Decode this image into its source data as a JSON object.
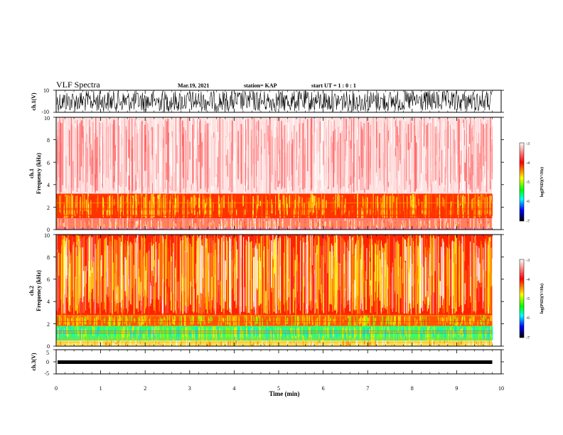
{
  "header": {
    "title": "VLF Spectra",
    "date": "Mar.19, 2021",
    "station": "station= KAP",
    "start": "start  UT =   1 : 0  : 1"
  },
  "chart_data": [
    {
      "type": "line",
      "title": "",
      "ylabel": "ch.1(V)",
      "ylim": [
        -10,
        10
      ],
      "yticks": [
        "10",
        "-10"
      ],
      "xlim": [
        0,
        10
      ],
      "description_note": "dense waveform trace"
    },
    {
      "type": "heatmap",
      "title": "",
      "ylabel_top": "ch.1",
      "ylabel": "Frequency  (kHz)",
      "ylim": [
        0,
        10
      ],
      "yticks": [
        "0",
        "2",
        "4",
        "6",
        "8",
        "10"
      ],
      "xlim": [
        0,
        10
      ],
      "colorbar": {
        "label": "log(PSD)(V²/Hz)",
        "range": [
          -7,
          -3
        ],
        "ticks": [
          "-3",
          "-4",
          "-5",
          "-6",
          "-7"
        ],
        "colors": [
          "#ffffff",
          "#ff0000",
          "#ffff00",
          "#00ff00",
          "#00ffff",
          "#0000ff",
          "#000000"
        ]
      }
    },
    {
      "type": "heatmap",
      "title": "",
      "ylabel_top": "ch.2",
      "ylabel": "Frequency  (kHz)",
      "ylim": [
        0,
        10
      ],
      "yticks": [
        "0",
        "2",
        "4",
        "6",
        "8",
        "10"
      ],
      "xlim": [
        0,
        10
      ],
      "colorbar": {
        "label": "log(PSD)(V²/Hz)",
        "range": [
          -7,
          -3
        ],
        "ticks": [
          "-3",
          "-4",
          "-5",
          "-6",
          "-7"
        ],
        "colors": [
          "#ffffff",
          "#ff0000",
          "#ffff00",
          "#00ff00",
          "#00ffff",
          "#0000ff",
          "#000000"
        ]
      }
    },
    {
      "type": "line",
      "title": "",
      "ylabel": "ch.3(V)",
      "ylim": [
        -5,
        5
      ],
      "yticks": [
        "5",
        "0",
        "-5"
      ],
      "xlim": [
        0,
        10
      ],
      "xlabel": "Time  (min)",
      "xticks": [
        "0",
        "1",
        "2",
        "3",
        "4",
        "5",
        "6",
        "7",
        "8",
        "9",
        "10"
      ],
      "data_end_minutes": 9.8
    }
  ]
}
